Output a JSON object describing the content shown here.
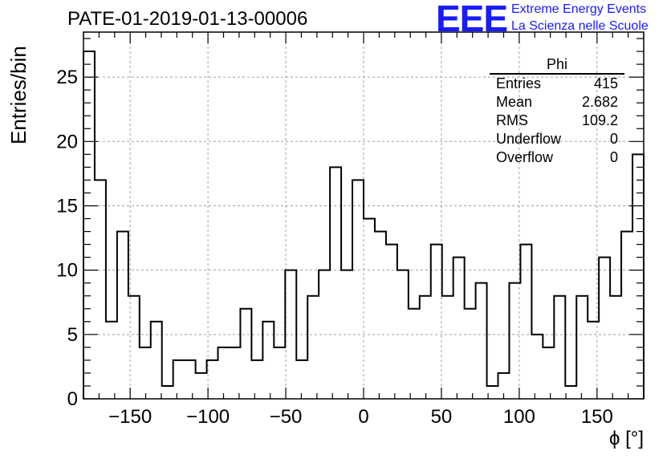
{
  "chart_data": {
    "type": "histogram",
    "title": "PATE-01-2019-01-13-00006",
    "xlabel": "ϕ [°]",
    "ylabel": "Entries/bin",
    "xlim": [
      -180,
      180
    ],
    "ylim": [
      0,
      28.5
    ],
    "bin_width": 7.2,
    "grid": true,
    "x_ticks": [
      -150,
      -100,
      -50,
      0,
      50,
      100,
      150
    ],
    "x_tick_labels": [
      "−150",
      "−100",
      "−50",
      "0",
      "50",
      "100",
      "150"
    ],
    "y_ticks": [
      0,
      5,
      10,
      15,
      20,
      25
    ],
    "y_tick_labels": [
      "0",
      "5",
      "10",
      "15",
      "20",
      "25"
    ],
    "bin_edges_start": -180,
    "values": [
      27,
      17,
      6,
      13,
      8,
      4,
      6,
      1,
      3,
      3,
      2,
      3,
      4,
      4,
      7,
      3,
      6,
      4,
      10,
      3,
      8,
      10,
      18,
      10,
      17,
      14,
      13,
      12,
      10,
      7,
      8,
      12,
      8,
      11,
      7,
      9,
      1,
      2,
      9,
      12,
      5,
      4,
      8,
      1,
      8,
      6,
      11,
      8,
      13,
      19
    ]
  },
  "stats_box": {
    "title": "Phi",
    "rows": [
      {
        "label": "Entries",
        "value": "415"
      },
      {
        "label": "Mean",
        "value": "2.682"
      },
      {
        "label": "RMS",
        "value": "109.2"
      },
      {
        "label": "Underflow",
        "value": "0"
      },
      {
        "label": "Overflow",
        "value": "0"
      }
    ]
  },
  "logo": {
    "mark": "EEE",
    "line1": "Extreme Energy Events",
    "line2": "La Scienza nelle Scuole",
    "color": "#1a1aff"
  }
}
